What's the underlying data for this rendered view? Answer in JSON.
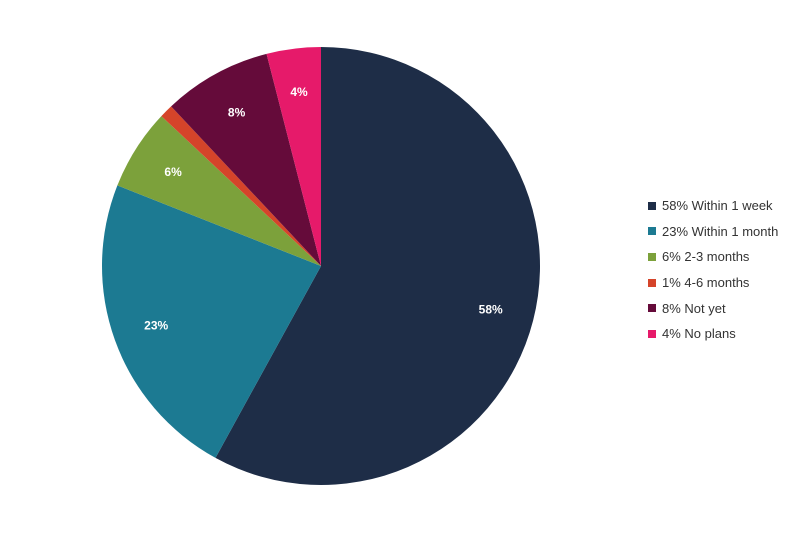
{
  "chart_data": {
    "type": "pie",
    "start": "12 o'clock",
    "direction": "clockwise",
    "legend_position": "right",
    "slices": [
      {
        "label": "Within 1 week",
        "value": 58,
        "value_label": "58%",
        "legend": "58% Within 1 week",
        "color": "#1e2d47"
      },
      {
        "label": "Within 1 month",
        "value": 23,
        "value_label": "23%",
        "legend": "23% Within 1 month",
        "color": "#1c7a92"
      },
      {
        "label": "2-3 months",
        "value": 6,
        "value_label": "6%",
        "legend": "6% 2-3 months",
        "color": "#7ca13b"
      },
      {
        "label": "4-6 months",
        "value": 1,
        "value_label": "",
        "legend": "1% 4-6 months",
        "color": "#d5442a"
      },
      {
        "label": "Not yet",
        "value": 8,
        "value_label": "8%",
        "legend": "8% Not yet",
        "color": "#650b3a"
      },
      {
        "label": "No plans",
        "value": 4,
        "value_label": "4%",
        "legend": "4% No plans",
        "color": "#e61a6a"
      }
    ]
  }
}
